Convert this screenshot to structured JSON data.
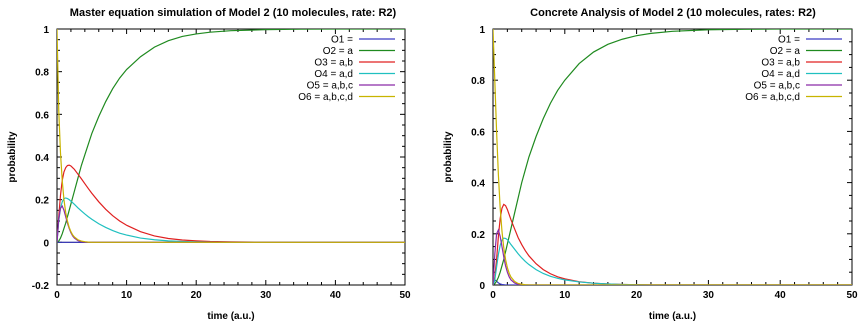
{
  "chart_data": [
    {
      "type": "line",
      "title": "Master equation simulation of Model 2 (10 molecules, rate: R2)",
      "xlabel": "time (a.u.)",
      "ylabel": "probability",
      "xlim": [
        0,
        50
      ],
      "ylim": [
        -0.2,
        1
      ],
      "xticks": [
        "0",
        "10",
        "20",
        "30",
        "40",
        "50"
      ],
      "yticks": [
        "-0.2",
        "0",
        "0.2",
        "0.4",
        "0.6",
        "0.8",
        "1"
      ],
      "grid": false,
      "legend_position": "top-right",
      "x": [
        0,
        0.25,
        0.5,
        0.75,
        1,
        1.25,
        1.5,
        1.75,
        2,
        2.25,
        2.5,
        3,
        3.5,
        4,
        4.5,
        5,
        6,
        7,
        8,
        9,
        10,
        12,
        14,
        16,
        18,
        20,
        22,
        25,
        30,
        35,
        40,
        45,
        50
      ],
      "series": [
        {
          "name": "O1 =",
          "color": "#3b3bc4",
          "values": [
            0,
            0,
            0,
            0,
            0,
            0,
            0,
            0,
            0,
            0,
            0,
            0,
            0,
            0,
            0,
            0,
            0,
            0,
            0,
            0,
            0,
            0,
            0,
            0,
            0,
            0,
            0,
            0,
            0,
            0,
            0,
            0,
            0
          ]
        },
        {
          "name": "O2 = a",
          "color": "#1f8a1f",
          "values": [
            0,
            0.006,
            0.02,
            0.04,
            0.065,
            0.09,
            0.12,
            0.15,
            0.18,
            0.21,
            0.24,
            0.3,
            0.36,
            0.41,
            0.46,
            0.51,
            0.59,
            0.66,
            0.72,
            0.77,
            0.81,
            0.87,
            0.915,
            0.945,
            0.965,
            0.977,
            0.985,
            0.992,
            0.997,
            0.999,
            1,
            1,
            1
          ]
        },
        {
          "name": "O3 = a,b",
          "color": "#e02020",
          "values": [
            0,
            0.12,
            0.22,
            0.29,
            0.33,
            0.35,
            0.36,
            0.362,
            0.358,
            0.35,
            0.342,
            0.32,
            0.298,
            0.275,
            0.252,
            0.23,
            0.19,
            0.155,
            0.125,
            0.1,
            0.08,
            0.05,
            0.03,
            0.018,
            0.011,
            0.007,
            0.004,
            0.002,
            0.001,
            0,
            0,
            0,
            0
          ]
        },
        {
          "name": "O4 = a,d",
          "color": "#20c0c0",
          "values": [
            0,
            0.1,
            0.16,
            0.19,
            0.205,
            0.208,
            0.205,
            0.2,
            0.193,
            0.186,
            0.178,
            0.162,
            0.147,
            0.133,
            0.12,
            0.108,
            0.087,
            0.07,
            0.055,
            0.043,
            0.034,
            0.02,
            0.012,
            0.007,
            0.004,
            0.002,
            0.001,
            0,
            0,
            0,
            0,
            0,
            0
          ]
        },
        {
          "name": "O5 = a,b,c",
          "color": "#8a2aa8",
          "values": [
            0,
            0.11,
            0.16,
            0.17,
            0.15,
            0.12,
            0.09,
            0.065,
            0.045,
            0.03,
            0.02,
            0.008,
            0.003,
            0.001,
            0,
            0,
            0,
            0,
            0,
            0,
            0,
            0,
            0,
            0,
            0,
            0,
            0,
            0,
            0,
            0,
            0,
            0,
            0
          ]
        },
        {
          "name": "O6 = a,b,c,d",
          "color": "#c8b400",
          "values": [
            1,
            0.62,
            0.42,
            0.29,
            0.2,
            0.14,
            0.1,
            0.07,
            0.05,
            0.035,
            0.025,
            0.012,
            0.006,
            0.003,
            0.001,
            0,
            0,
            0,
            0,
            0,
            0,
            0,
            0,
            0,
            0,
            0,
            0,
            0,
            0,
            0,
            0,
            0,
            0
          ]
        }
      ]
    },
    {
      "type": "line",
      "title": "Concrete Analysis of Model 2 (10 molecules, rates: R2)",
      "xlabel": "time (a.u.)",
      "ylabel": "probability",
      "xlim": [
        0,
        50
      ],
      "ylim": [
        0,
        1
      ],
      "xticks": [
        "0",
        "10",
        "20",
        "30",
        "40",
        "50"
      ],
      "yticks": [
        "0",
        "0.2",
        "0.4",
        "0.6",
        "0.8",
        "1"
      ],
      "grid": false,
      "legend_position": "top-right",
      "x": [
        0,
        0.25,
        0.5,
        0.75,
        1,
        1.25,
        1.5,
        1.75,
        2,
        2.25,
        2.5,
        3,
        3.5,
        4,
        4.5,
        5,
        6,
        7,
        8,
        9,
        10,
        12,
        14,
        16,
        18,
        20,
        22,
        25,
        30,
        35,
        40,
        45,
        50
      ],
      "series": [
        {
          "name": "O1 =",
          "color": "#3b3bc4",
          "values": [
            0,
            0.02,
            0.015,
            0.008,
            0.004,
            0.002,
            0.001,
            0,
            0,
            0,
            0,
            0,
            0,
            0,
            0,
            0,
            0,
            0,
            0,
            0,
            0,
            0,
            0,
            0,
            0,
            0,
            0,
            0,
            0,
            0,
            0,
            0,
            0
          ]
        },
        {
          "name": "O2 = a",
          "color": "#1f8a1f",
          "values": [
            0,
            0.005,
            0.015,
            0.03,
            0.05,
            0.075,
            0.1,
            0.13,
            0.16,
            0.19,
            0.22,
            0.28,
            0.34,
            0.4,
            0.45,
            0.5,
            0.58,
            0.65,
            0.71,
            0.76,
            0.8,
            0.865,
            0.91,
            0.94,
            0.96,
            0.974,
            0.983,
            0.991,
            0.997,
            0.999,
            1,
            1,
            1
          ]
        },
        {
          "name": "O3 = a,b",
          "color": "#e02020",
          "values": [
            0,
            0.03,
            0.1,
            0.19,
            0.26,
            0.3,
            0.315,
            0.31,
            0.295,
            0.275,
            0.255,
            0.22,
            0.185,
            0.158,
            0.134,
            0.114,
            0.083,
            0.06,
            0.044,
            0.032,
            0.024,
            0.013,
            0.007,
            0.004,
            0.002,
            0.001,
            0,
            0,
            0,
            0,
            0,
            0,
            0
          ]
        },
        {
          "name": "O4 = a,d",
          "color": "#20c0c0",
          "values": [
            0,
            0.02,
            0.07,
            0.12,
            0.155,
            0.175,
            0.183,
            0.182,
            0.177,
            0.168,
            0.158,
            0.14,
            0.122,
            0.106,
            0.092,
            0.08,
            0.06,
            0.045,
            0.034,
            0.026,
            0.02,
            0.012,
            0.007,
            0.004,
            0.002,
            0.001,
            0,
            0,
            0,
            0,
            0,
            0,
            0
          ]
        },
        {
          "name": "O5 = a,b,c",
          "color": "#8a2aa8",
          "values": [
            0,
            0.12,
            0.2,
            0.215,
            0.19,
            0.15,
            0.11,
            0.075,
            0.05,
            0.032,
            0.02,
            0.008,
            0.003,
            0.001,
            0,
            0,
            0,
            0,
            0,
            0,
            0,
            0,
            0,
            0,
            0,
            0,
            0,
            0,
            0,
            0,
            0,
            0,
            0
          ]
        },
        {
          "name": "O6 = a,b,c,d",
          "color": "#c8b400",
          "values": [
            1,
            0.8,
            0.6,
            0.43,
            0.3,
            0.21,
            0.145,
            0.1,
            0.068,
            0.046,
            0.031,
            0.014,
            0.006,
            0.003,
            0.001,
            0,
            0,
            0,
            0,
            0,
            0,
            0,
            0,
            0,
            0,
            0,
            0,
            0,
            0,
            0,
            0,
            0,
            0
          ]
        }
      ]
    }
  ]
}
